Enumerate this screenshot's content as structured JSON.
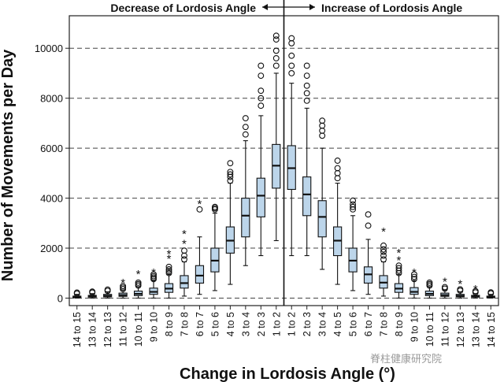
{
  "chart_data": {
    "type": "boxplot",
    "ylabel": "Number of Movements per Day",
    "xlabel": "Change in Lordosis Angle (°)",
    "annotation_left": "Decrease of Lordosis Angle",
    "annotation_right": "Increase of Lordosis Angle",
    "ylim": [
      -300,
      11300
    ],
    "yticks": [
      0,
      2000,
      4000,
      6000,
      8000,
      10000
    ],
    "grid": "horizontal-dashed",
    "box_color": "#bcd5ea",
    "categories": [
      "14 to 15",
      "13 to 14",
      "12 to 13",
      "11 to 12",
      "10 to 11",
      "9 to 10",
      "8 to 9",
      "7 to 8",
      "6 to 7",
      "5 to 6",
      "4 to 5",
      "3 to 4",
      "2 to 3",
      "1 to 2",
      "1 to 2",
      "2 to 3",
      "3 to 4",
      "4 to 5",
      "5 to 6",
      "6 to 7",
      "7 to 8",
      "8 to 9",
      "9 to 10",
      "10 to 11",
      "11 to 12",
      "12 to 13",
      "13 to 14",
      "14 to 15"
    ],
    "series": [
      {
        "min": 0,
        "q1": 30,
        "median": 50,
        "q3": 80,
        "max": 150,
        "outliers_circle": [
          180,
          220
        ],
        "outliers_star": []
      },
      {
        "min": 0,
        "q1": 40,
        "median": 70,
        "q3": 110,
        "max": 180,
        "outliers_circle": [
          220,
          260
        ],
        "outliers_star": []
      },
      {
        "min": 0,
        "q1": 50,
        "median": 90,
        "q3": 150,
        "max": 250,
        "outliers_circle": [
          290,
          340
        ],
        "outliers_star": []
      },
      {
        "min": 0,
        "q1": 70,
        "median": 120,
        "q3": 200,
        "max": 320,
        "outliers_circle": [
          360,
          420,
          480
        ],
        "outliers_star": [
          650
        ]
      },
      {
        "min": 0,
        "q1": 100,
        "median": 170,
        "q3": 280,
        "max": 450,
        "outliers_circle": [
          500,
          560,
          620
        ],
        "outliers_star": [
          1000
        ]
      },
      {
        "min": 0,
        "q1": 150,
        "median": 250,
        "q3": 400,
        "max": 700,
        "outliers_circle": [
          760,
          820,
          880,
          950
        ],
        "outliers_star": [
          1050
        ]
      },
      {
        "min": 0,
        "q1": 230,
        "median": 380,
        "q3": 580,
        "max": 950,
        "outliers_circle": [
          1000,
          1080,
          1150,
          1250
        ],
        "outliers_star": [
          1600,
          1800
        ]
      },
      {
        "min": 80,
        "q1": 400,
        "median": 600,
        "q3": 900,
        "max": 1450,
        "outliers_circle": [
          1550,
          1700,
          1900
        ],
        "outliers_star": [
          2200,
          2600
        ]
      },
      {
        "min": 150,
        "q1": 600,
        "median": 900,
        "q3": 1300,
        "max": 2450,
        "outliers_circle": [
          3550
        ],
        "outliers_star": [
          3800
        ]
      },
      {
        "min": 300,
        "q1": 1050,
        "median": 1500,
        "q3": 2000,
        "max": 3400,
        "outliers_circle": [
          3550,
          3600,
          3650
        ],
        "outliers_star": []
      },
      {
        "min": 550,
        "q1": 1800,
        "median": 2300,
        "q3": 2850,
        "max": 4600,
        "outliers_circle": [
          4700,
          4850,
          4950,
          5050,
          5400
        ],
        "outliers_star": []
      },
      {
        "min": 1300,
        "q1": 2450,
        "median": 3300,
        "q3": 4000,
        "max": 6300,
        "outliers_circle": [
          6550,
          6850,
          7200
        ],
        "outliers_star": []
      },
      {
        "min": 1700,
        "q1": 3250,
        "median": 4100,
        "q3": 4800,
        "max": 7300,
        "outliers_circle": [
          7700,
          8000,
          8300,
          8900,
          9300
        ],
        "outliers_star": []
      },
      {
        "min": 2300,
        "q1": 4400,
        "median": 5300,
        "q3": 6150,
        "max": 9000,
        "outliers_circle": [
          9300,
          9600,
          9900,
          10350,
          10500
        ],
        "outliers_star": []
      },
      {
        "min": 1700,
        "q1": 4350,
        "median": 5200,
        "q3": 6100,
        "max": 8600,
        "outliers_circle": [
          9000,
          9300,
          9700,
          10200,
          10400
        ],
        "outliers_star": []
      },
      {
        "min": 1700,
        "q1": 3300,
        "median": 4150,
        "q3": 4850,
        "max": 7600,
        "outliers_circle": [
          7900,
          8200,
          8500,
          8900,
          9300
        ],
        "outliers_star": []
      },
      {
        "min": 1150,
        "q1": 2450,
        "median": 3250,
        "q3": 3900,
        "max": 6000,
        "outliers_circle": [
          6500,
          6700,
          6900,
          7100
        ],
        "outliers_star": []
      },
      {
        "min": 550,
        "q1": 1700,
        "median": 2300,
        "q3": 2850,
        "max": 4600,
        "outliers_circle": [
          4800,
          5000,
          5200,
          5500
        ],
        "outliers_star": []
      },
      {
        "min": 300,
        "q1": 1050,
        "median": 1500,
        "q3": 2000,
        "max": 3300,
        "outliers_circle": [
          3550,
          3650,
          3750,
          3900
        ],
        "outliers_star": []
      },
      {
        "min": 150,
        "q1": 600,
        "median": 950,
        "q3": 1250,
        "max": 2350,
        "outliers_circle": [
          2900,
          3350
        ],
        "outliers_star": []
      },
      {
        "min": 80,
        "q1": 400,
        "median": 620,
        "q3": 900,
        "max": 1450,
        "outliers_circle": [
          1550,
          1700,
          1850,
          1950,
          2100
        ],
        "outliers_star": [
          2700
        ]
      },
      {
        "min": 0,
        "q1": 230,
        "median": 380,
        "q3": 580,
        "max": 950,
        "outliers_circle": [
          1000,
          1100,
          1200,
          1300
        ],
        "outliers_star": [
          1550,
          1850
        ]
      },
      {
        "min": 0,
        "q1": 150,
        "median": 250,
        "q3": 420,
        "max": 700,
        "outliers_circle": [
          760,
          850,
          950
        ],
        "outliers_star": [
          1050
        ]
      },
      {
        "min": 0,
        "q1": 100,
        "median": 170,
        "q3": 280,
        "max": 450,
        "outliers_circle": [
          500,
          560,
          620
        ],
        "outliers_star": []
      },
      {
        "min": 0,
        "q1": 70,
        "median": 120,
        "q3": 200,
        "max": 320,
        "outliers_circle": [
          380,
          440
        ],
        "outliers_star": [
          700
        ]
      },
      {
        "min": 0,
        "q1": 50,
        "median": 90,
        "q3": 150,
        "max": 250,
        "outliers_circle": [
          300,
          350
        ],
        "outliers_star": [
          600
        ]
      },
      {
        "min": 0,
        "q1": 40,
        "median": 70,
        "q3": 110,
        "max": 180,
        "outliers_circle": [
          230,
          280
        ],
        "outliers_star": [
          400
        ]
      },
      {
        "min": 0,
        "q1": 30,
        "median": 50,
        "q3": 80,
        "max": 150,
        "outliers_circle": [
          190,
          230
        ],
        "outliers_star": []
      }
    ]
  },
  "watermark": "脊柱健康研究院"
}
